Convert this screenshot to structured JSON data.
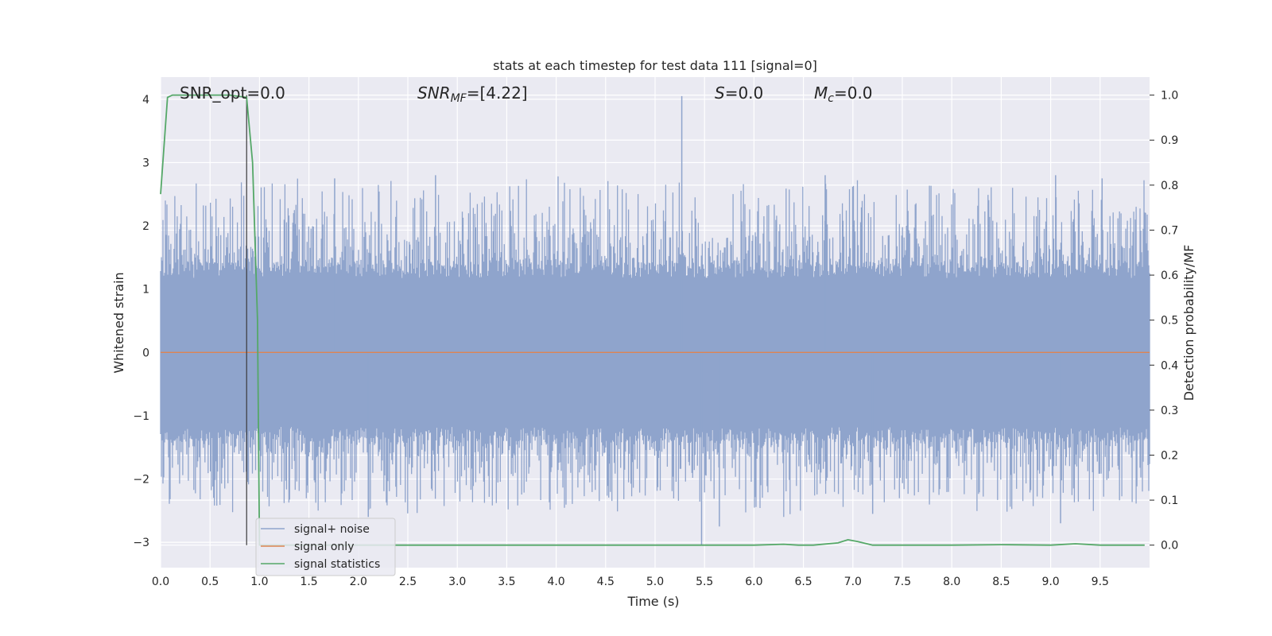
{
  "chart_data": {
    "type": "line",
    "title": "stats at each timestep for test data 111 [signal=0]",
    "xlabel": "Time (s)",
    "ylabel": "Whitened strain",
    "ylabel_right": "Detection probability/MF",
    "xlim": [
      0,
      10
    ],
    "ylim": [
      -3.4,
      4.35
    ],
    "ylim_right": [
      -0.05,
      1.04
    ],
    "x_ticks": [
      "0.0",
      "0.5",
      "1.0",
      "1.5",
      "2.0",
      "2.5",
      "3.0",
      "3.5",
      "4.0",
      "4.5",
      "5.0",
      "5.5",
      "6.0",
      "6.5",
      "7.0",
      "7.5",
      "8.0",
      "8.5",
      "9.0",
      "9.5"
    ],
    "y_ticks": [
      "4",
      "3",
      "2",
      "1",
      "0",
      "−1",
      "−2",
      "−3"
    ],
    "y_ticks_right": [
      "1.0",
      "0.9",
      "0.8",
      "0.7",
      "0.6",
      "0.5",
      "0.4",
      "0.3",
      "0.2",
      "0.1",
      "0.0"
    ],
    "grid": true,
    "legend_position": "bottom-left",
    "annotations": {
      "snr_opt": "SNR_opt=0.0",
      "snr_mf_main": "SNR",
      "snr_mf_sub": "MF",
      "snr_mf_value": "=[4.22]",
      "s_main": "S",
      "s_value": "=0.0",
      "mc_main": "M",
      "mc_sub": "c",
      "mc_value": "=0.0"
    },
    "marker_line_x": 0.87,
    "series": [
      {
        "name": "signal+ noise",
        "color": "#8fa4cc",
        "axis": "left",
        "description_values": "whitened noise, approx. uniform band",
        "band": [
          -1.3,
          1.3
        ],
        "spikes": [
          {
            "x": 5.27,
            "y": 4.05
          },
          {
            "x": 5.47,
            "y": -3.05
          },
          {
            "x": 5.65,
            "y": -2.75
          },
          {
            "x": 9.1,
            "y": -2.7
          },
          {
            "x": 2.1,
            "y": -2.6
          },
          {
            "x": 7.2,
            "y": -2.55
          },
          {
            "x": 2.78,
            "y": 2.8
          },
          {
            "x": 6.72,
            "y": 2.8
          },
          {
            "x": 9.05,
            "y": 2.8
          },
          {
            "x": 1.76,
            "y": 2.75
          },
          {
            "x": 9.52,
            "y": 2.75
          }
        ]
      },
      {
        "name": "signal only",
        "color": "#dd8452",
        "axis": "left",
        "x": [
          0,
          10
        ],
        "y": [
          0,
          0
        ]
      },
      {
        "name": "signal statistics",
        "color": "#55a868",
        "axis": "right",
        "x": [
          0.0,
          0.07,
          0.12,
          0.3,
          0.5,
          0.7,
          0.87,
          0.93,
          0.98,
          1.0,
          1.2,
          2.0,
          3.0,
          4.0,
          5.0,
          6.0,
          6.3,
          6.45,
          6.6,
          6.85,
          6.95,
          7.05,
          7.2,
          7.5,
          8.0,
          8.5,
          9.0,
          9.25,
          9.5,
          9.95
        ],
        "y": [
          0.78,
          0.995,
          1.0,
          1.0,
          1.0,
          1.0,
          0.995,
          0.85,
          0.5,
          0.0,
          0.0,
          0.0,
          0.0,
          0.0,
          0.0,
          0.0,
          0.002,
          0.0,
          0.0,
          0.005,
          0.012,
          0.008,
          0.0,
          0.0,
          0.0,
          0.001,
          0.0,
          0.003,
          0.0,
          0.0
        ]
      }
    ]
  }
}
